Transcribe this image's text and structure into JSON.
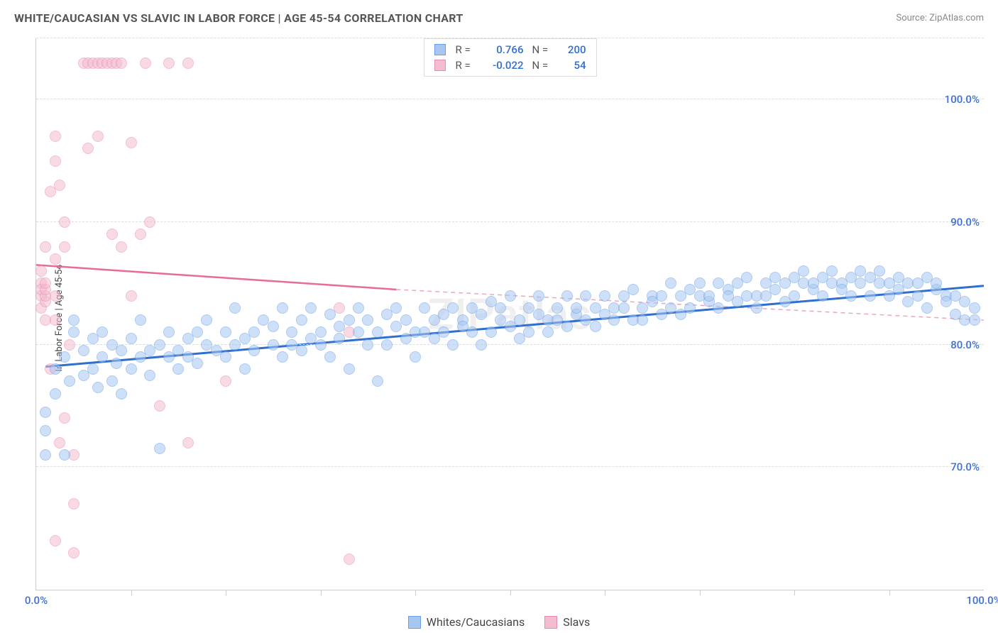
{
  "title": "WHITE/CAUCASIAN VS SLAVIC IN LABOR FORCE | AGE 45-54 CORRELATION CHART",
  "source": "Source: ZipAtlas.com",
  "watermark": "ZIPatlas",
  "chart": {
    "type": "scatter",
    "ylabel": "In Labor Force | Age 45-54",
    "xlim": [
      0,
      100
    ],
    "ylim": [
      60,
      105
    ],
    "yticks": [
      {
        "v": 70,
        "label": "70.0%"
      },
      {
        "v": 80,
        "label": "80.0%"
      },
      {
        "v": 90,
        "label": "90.0%"
      },
      {
        "v": 100,
        "label": "100.0%"
      }
    ],
    "xtick_positions": [
      10,
      20,
      30,
      40,
      50,
      60,
      70,
      80,
      90
    ],
    "xtick_labels": [
      {
        "v": 0,
        "label": "0.0%"
      },
      {
        "v": 100,
        "label": "100.0%"
      }
    ],
    "grid_color": "#dddddd",
    "axis_color": "#cccccc",
    "label_color_x": "#3b6fd6",
    "background_color": "#ffffff",
    "marker_radius": 8,
    "marker_opacity": 0.55,
    "series": [
      {
        "id": "whites",
        "name": "Whites/Caucasians",
        "color_fill": "#a7c7f2",
        "color_stroke": "#6a9ee8",
        "trend_color": "#2f6fd0",
        "trend_width": 3,
        "R": "0.766",
        "N": "200",
        "trend": {
          "x1": 1,
          "y1": 78.2,
          "x2": 100,
          "y2": 84.8
        },
        "points": [
          [
            1,
            71
          ],
          [
            1,
            73
          ],
          [
            1,
            74.5
          ],
          [
            2,
            76
          ],
          [
            2,
            78
          ],
          [
            3,
            71
          ],
          [
            3,
            79
          ],
          [
            3.5,
            77
          ],
          [
            4,
            82
          ],
          [
            4,
            81
          ],
          [
            5,
            79.5
          ],
          [
            5,
            77.5
          ],
          [
            6,
            80.5
          ],
          [
            6,
            78
          ],
          [
            6.5,
            76.5
          ],
          [
            7,
            79
          ],
          [
            7,
            81
          ],
          [
            8,
            77
          ],
          [
            8,
            80
          ],
          [
            8.5,
            78.5
          ],
          [
            9,
            79.5
          ],
          [
            9,
            76
          ],
          [
            10,
            80.5
          ],
          [
            10,
            78
          ],
          [
            11,
            79
          ],
          [
            11,
            82
          ],
          [
            12,
            79.5
          ],
          [
            12,
            77.5
          ],
          [
            13,
            80
          ],
          [
            13,
            71.5
          ],
          [
            14,
            79
          ],
          [
            14,
            81
          ],
          [
            15,
            79.5
          ],
          [
            15,
            78
          ],
          [
            16,
            80.5
          ],
          [
            16,
            79
          ],
          [
            17,
            81
          ],
          [
            17,
            78.5
          ],
          [
            18,
            80
          ],
          [
            18,
            82
          ],
          [
            19,
            79.5
          ],
          [
            20,
            81
          ],
          [
            20,
            79
          ],
          [
            21,
            80
          ],
          [
            21,
            83
          ],
          [
            22,
            80.5
          ],
          [
            22,
            78
          ],
          [
            23,
            81
          ],
          [
            23,
            79.5
          ],
          [
            24,
            82
          ],
          [
            25,
            81.5
          ],
          [
            25,
            80
          ],
          [
            26,
            79
          ],
          [
            26,
            83
          ],
          [
            27,
            81
          ],
          [
            27,
            80
          ],
          [
            28,
            82
          ],
          [
            28,
            79.5
          ],
          [
            29,
            80.5
          ],
          [
            29,
            83
          ],
          [
            30,
            81
          ],
          [
            30,
            80
          ],
          [
            31,
            82.5
          ],
          [
            31,
            79
          ],
          [
            32,
            81.5
          ],
          [
            32,
            80.5
          ],
          [
            33,
            78
          ],
          [
            33,
            82
          ],
          [
            34,
            81
          ],
          [
            34,
            83
          ],
          [
            35,
            80
          ],
          [
            35,
            82
          ],
          [
            36,
            81
          ],
          [
            36,
            77
          ],
          [
            37,
            82.5
          ],
          [
            37,
            80
          ],
          [
            38,
            81.5
          ],
          [
            38,
            83
          ],
          [
            39,
            80.5
          ],
          [
            39,
            82
          ],
          [
            40,
            81
          ],
          [
            40,
            79
          ],
          [
            41,
            83
          ],
          [
            41,
            81
          ],
          [
            42,
            82
          ],
          [
            42,
            80.5
          ],
          [
            43,
            82.5
          ],
          [
            43,
            81
          ],
          [
            44,
            83
          ],
          [
            44,
            80
          ],
          [
            45,
            82
          ],
          [
            45,
            81.5
          ],
          [
            46,
            83
          ],
          [
            46,
            81
          ],
          [
            47,
            82.5
          ],
          [
            47,
            80
          ],
          [
            48,
            83.5
          ],
          [
            48,
            81
          ],
          [
            49,
            82
          ],
          [
            49,
            83
          ],
          [
            50,
            81.5
          ],
          [
            50,
            84
          ],
          [
            51,
            82
          ],
          [
            51,
            80.5
          ],
          [
            52,
            83
          ],
          [
            52,
            81
          ],
          [
            53,
            82.5
          ],
          [
            53,
            84
          ],
          [
            54,
            82
          ],
          [
            54,
            81
          ],
          [
            55,
            83
          ],
          [
            55,
            82
          ],
          [
            56,
            81.5
          ],
          [
            56,
            84
          ],
          [
            57,
            82.5
          ],
          [
            57,
            83
          ],
          [
            58,
            82
          ],
          [
            58,
            84
          ],
          [
            59,
            83
          ],
          [
            59,
            81.5
          ],
          [
            60,
            84
          ],
          [
            60,
            82.5
          ],
          [
            61,
            83
          ],
          [
            61,
            82
          ],
          [
            62,
            84
          ],
          [
            62,
            83
          ],
          [
            63,
            82
          ],
          [
            63,
            84.5
          ],
          [
            64,
            83
          ],
          [
            64,
            82
          ],
          [
            65,
            84
          ],
          [
            65,
            83.5
          ],
          [
            66,
            82.5
          ],
          [
            66,
            84
          ],
          [
            67,
            83
          ],
          [
            67,
            85
          ],
          [
            68,
            84
          ],
          [
            68,
            82.5
          ],
          [
            69,
            84.5
          ],
          [
            69,
            83
          ],
          [
            70,
            84
          ],
          [
            70,
            85
          ],
          [
            71,
            83.5
          ],
          [
            71,
            84
          ],
          [
            72,
            85
          ],
          [
            72,
            83
          ],
          [
            73,
            84.5
          ],
          [
            73,
            84
          ],
          [
            74,
            85
          ],
          [
            74,
            83.5
          ],
          [
            75,
            84
          ],
          [
            75,
            85.5
          ],
          [
            76,
            84
          ],
          [
            76,
            83
          ],
          [
            77,
            85
          ],
          [
            77,
            84
          ],
          [
            78,
            85.5
          ],
          [
            78,
            84.5
          ],
          [
            79,
            85
          ],
          [
            79,
            83.5
          ],
          [
            80,
            85.5
          ],
          [
            80,
            84
          ],
          [
            81,
            85
          ],
          [
            81,
            86
          ],
          [
            82,
            84.5
          ],
          [
            82,
            85
          ],
          [
            83,
            85.5
          ],
          [
            83,
            84
          ],
          [
            84,
            86
          ],
          [
            84,
            85
          ],
          [
            85,
            85
          ],
          [
            85,
            84.5
          ],
          [
            86,
            85.5
          ],
          [
            86,
            84
          ],
          [
            87,
            86
          ],
          [
            87,
            85
          ],
          [
            88,
            85.5
          ],
          [
            88,
            84
          ],
          [
            89,
            85
          ],
          [
            89,
            86
          ],
          [
            90,
            85
          ],
          [
            90,
            84
          ],
          [
            91,
            85.5
          ],
          [
            91,
            84.5
          ],
          [
            92,
            85
          ],
          [
            92,
            83.5
          ],
          [
            93,
            85
          ],
          [
            93,
            84
          ],
          [
            94,
            85.5
          ],
          [
            94,
            83
          ],
          [
            95,
            84.5
          ],
          [
            95,
            85
          ],
          [
            96,
            84
          ],
          [
            96,
            83.5
          ],
          [
            97,
            84
          ],
          [
            97,
            82.5
          ],
          [
            98,
            83.5
          ],
          [
            98,
            82
          ],
          [
            99,
            83
          ],
          [
            99,
            82
          ]
        ]
      },
      {
        "id": "slavs",
        "name": "Slavs",
        "color_fill": "#f3bcd0",
        "color_stroke": "#e98bb0",
        "trend_color": "#e86b98",
        "trend_width": 2.5,
        "trend_dash_color": "#e9a8be",
        "R": "-0.022",
        "N": "54",
        "trend_solid": {
          "x1": 0,
          "y1": 86.5,
          "x2": 38,
          "y2": 84.5
        },
        "trend_dash": {
          "x1": 38,
          "y1": 84.5,
          "x2": 100,
          "y2": 82
        },
        "points": [
          [
            0.5,
            84
          ],
          [
            0.5,
            85
          ],
          [
            0.5,
            83
          ],
          [
            0.5,
            84.5
          ],
          [
            0.5,
            86
          ],
          [
            1,
            83.5
          ],
          [
            1,
            84
          ],
          [
            1,
            88
          ],
          [
            1,
            84.5
          ],
          [
            1,
            85
          ],
          [
            1,
            82
          ],
          [
            1.5,
            78
          ],
          [
            1.5,
            92.5
          ],
          [
            2,
            95
          ],
          [
            2,
            97
          ],
          [
            2,
            84
          ],
          [
            2,
            87
          ],
          [
            2,
            82
          ],
          [
            2,
            64
          ],
          [
            2.5,
            93
          ],
          [
            2.5,
            72
          ],
          [
            3,
            90
          ],
          [
            3,
            88
          ],
          [
            3,
            74
          ],
          [
            3.5,
            80
          ],
          [
            4,
            63
          ],
          [
            4,
            71
          ],
          [
            4,
            67
          ],
          [
            5,
            103
          ],
          [
            5.5,
            103
          ],
          [
            5.5,
            96
          ],
          [
            6,
            103
          ],
          [
            6.5,
            103
          ],
          [
            6.5,
            97
          ],
          [
            7,
            103
          ],
          [
            7.5,
            103
          ],
          [
            8,
            103
          ],
          [
            8.5,
            103
          ],
          [
            8,
            89
          ],
          [
            9,
            103
          ],
          [
            9,
            88
          ],
          [
            10,
            96.5
          ],
          [
            10,
            84
          ],
          [
            11,
            89
          ],
          [
            11.5,
            103
          ],
          [
            12,
            90
          ],
          [
            13,
            75
          ],
          [
            14,
            103
          ],
          [
            16,
            72
          ],
          [
            16,
            103
          ],
          [
            20,
            77
          ],
          [
            32,
            83
          ],
          [
            33,
            62.5
          ],
          [
            33,
            81
          ]
        ]
      }
    ],
    "stats_legend": {
      "swatches": [
        {
          "fill": "#a7c7f2",
          "stroke": "#6a9ee8"
        },
        {
          "fill": "#f3bcd0",
          "stroke": "#e98bb0"
        }
      ],
      "label_R": "R =",
      "label_N": "N =",
      "value_color": "#2f6fd0",
      "label_color": "#555555"
    },
    "bottom_legend": [
      {
        "label": "Whites/Caucasians",
        "fill": "#a7c7f2",
        "stroke": "#6a9ee8"
      },
      {
        "label": "Slavs",
        "fill": "#f3bcd0",
        "stroke": "#e98bb0"
      }
    ]
  }
}
